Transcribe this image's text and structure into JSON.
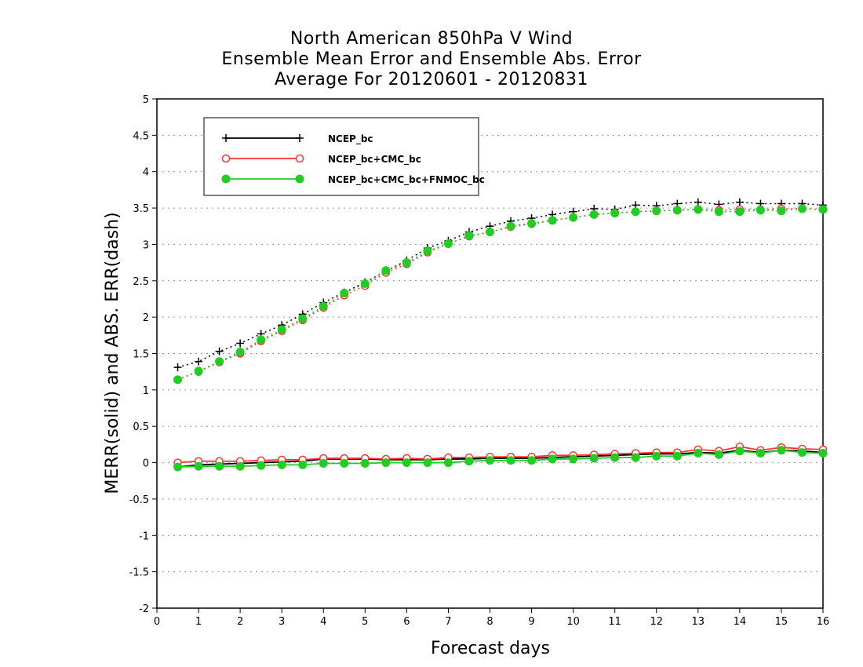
{
  "chart_data": {
    "type": "line",
    "title": [
      "North American 850hPa V Wind",
      "Ensemble Mean Error and Ensemble Abs. Error",
      "Average For 20120601 - 20120831"
    ],
    "xlabel": "Forecast days",
    "ylabel": "MERR(solid) and ABS. ERR(dash)",
    "xlim": [
      0,
      16
    ],
    "ylim": [
      -2,
      5
    ],
    "xticks": [
      "0",
      "1",
      "2",
      "3",
      "4",
      "5",
      "6",
      "7",
      "8",
      "9",
      "10",
      "11",
      "12",
      "13",
      "14",
      "15",
      "16"
    ],
    "yticks": [
      "-2",
      "-1.5",
      "-1",
      "-0.5",
      "0",
      "0.5",
      "1",
      "1.5",
      "2",
      "2.5",
      "3",
      "3.5",
      "4",
      "4.5",
      "5"
    ],
    "grid": "horizontal dotted",
    "legend_position": "top-left",
    "x": [
      0.5,
      1,
      1.5,
      2,
      2.5,
      3,
      3.5,
      4,
      4.5,
      5,
      5.5,
      6,
      6.5,
      7,
      7.5,
      8,
      8.5,
      9,
      9.5,
      10,
      10.5,
      11,
      11.5,
      12,
      12.5,
      13,
      13.5,
      14,
      14.5,
      15,
      15.5,
      16
    ],
    "series": [
      {
        "name": "NCEP_bc",
        "color": "#000000",
        "marker": "plus",
        "abs_err": [
          1.31,
          1.39,
          1.53,
          1.64,
          1.77,
          1.89,
          2.04,
          2.2,
          2.34,
          2.48,
          2.63,
          2.78,
          2.95,
          3.05,
          3.17,
          3.25,
          3.32,
          3.36,
          3.41,
          3.45,
          3.49,
          3.48,
          3.54,
          3.53,
          3.56,
          3.58,
          3.55,
          3.58,
          3.56,
          3.56,
          3.56,
          3.54
        ],
        "mean_err": [
          -0.06,
          -0.03,
          -0.02,
          -0.01,
          0.0,
          0.01,
          0.02,
          0.05,
          0.05,
          0.05,
          0.04,
          0.04,
          0.04,
          0.05,
          0.05,
          0.06,
          0.06,
          0.06,
          0.07,
          0.08,
          0.09,
          0.1,
          0.11,
          0.12,
          0.12,
          0.14,
          0.13,
          0.17,
          0.14,
          0.17,
          0.16,
          0.14
        ]
      },
      {
        "name": "NCEP_bc+CMC_bc",
        "color": "#ff3333",
        "marker": "open-circle",
        "abs_err": [
          1.14,
          1.25,
          1.38,
          1.5,
          1.67,
          1.81,
          1.96,
          2.13,
          2.3,
          2.43,
          2.61,
          2.73,
          2.89,
          3.01,
          3.11,
          3.17,
          3.24,
          3.28,
          3.33,
          3.37,
          3.41,
          3.43,
          3.45,
          3.46,
          3.47,
          3.48,
          3.47,
          3.48,
          3.48,
          3.49,
          3.49,
          3.48
        ],
        "mean_err": [
          0.0,
          0.02,
          0.02,
          0.02,
          0.03,
          0.04,
          0.04,
          0.06,
          0.06,
          0.06,
          0.05,
          0.06,
          0.05,
          0.07,
          0.07,
          0.08,
          0.08,
          0.08,
          0.1,
          0.1,
          0.11,
          0.12,
          0.13,
          0.14,
          0.14,
          0.18,
          0.16,
          0.22,
          0.17,
          0.21,
          0.19,
          0.18
        ]
      },
      {
        "name": "NCEP_bc+CMC_bc+FNMOC_bc",
        "color": "#22cc22",
        "marker": "filled-circle",
        "abs_err": [
          1.14,
          1.26,
          1.39,
          1.52,
          1.69,
          1.83,
          1.98,
          2.15,
          2.33,
          2.46,
          2.64,
          2.75,
          2.91,
          3.01,
          3.12,
          3.17,
          3.25,
          3.29,
          3.33,
          3.37,
          3.41,
          3.43,
          3.45,
          3.46,
          3.47,
          3.48,
          3.45,
          3.45,
          3.47,
          3.46,
          3.49,
          3.48
        ],
        "mean_err": [
          -0.06,
          -0.05,
          -0.05,
          -0.05,
          -0.04,
          -0.03,
          -0.03,
          -0.01,
          -0.01,
          -0.01,
          0.0,
          0.0,
          0.0,
          0.0,
          0.02,
          0.03,
          0.03,
          0.03,
          0.05,
          0.05,
          0.06,
          0.07,
          0.07,
          0.09,
          0.09,
          0.13,
          0.11,
          0.16,
          0.13,
          0.17,
          0.14,
          0.13
        ]
      }
    ]
  }
}
